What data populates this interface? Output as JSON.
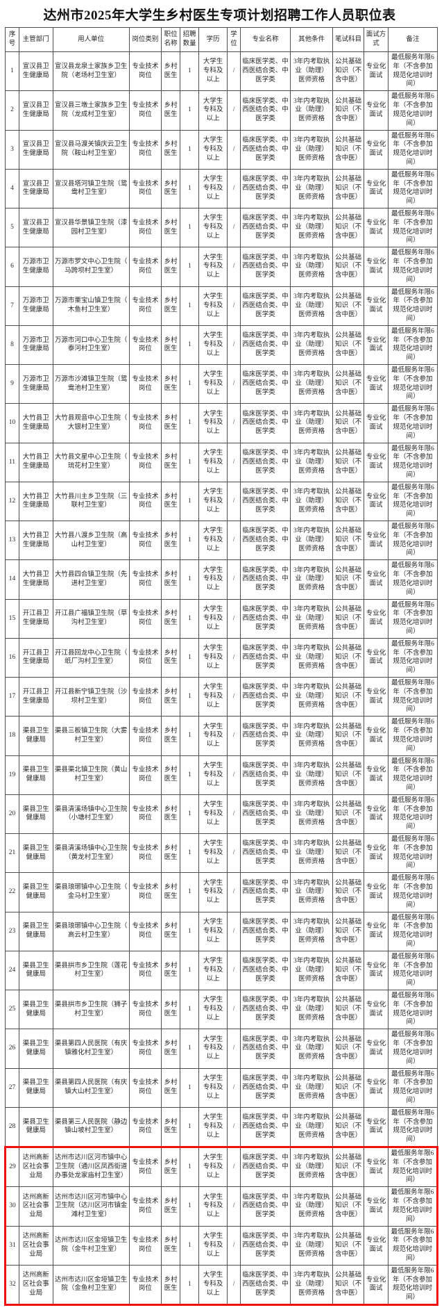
{
  "title": "达州市2025年大学生乡村医生专项计划招聘工作人员职位表",
  "table": {
    "headers": [
      "序号",
      "主管部门",
      "用人单位",
      "岗位类别",
      "职位名称",
      "招聘数量",
      "学历",
      "学位",
      "专业名称",
      "其他条件",
      "笔试科目",
      "面试方式",
      "备注"
    ],
    "shared_cells": {
      "category": "专业技术岗位",
      "position": "乡村医生",
      "count": "1",
      "education": "大学生专科及以上",
      "degree": "/",
      "major": "临床医学类、中西医结合类、中医学类",
      "other_conditions": "3年内考取执业（助理）医师资格",
      "written_subject": "公共基础知识（不含中医）",
      "interview_mode": "专业化面试",
      "remark": "最低服务年限6年（不含参加规范化培训时间）"
    },
    "rows": [
      {
        "no": "1",
        "department": "宣汉县卫生健康局",
        "employer": "宣汉县龙泉土家族乡卫生院（老场村卫生室）"
      },
      {
        "no": "2",
        "department": "宣汉县卫生健康局",
        "employer": "宣汉县三墩土家族乡卫生院（龙成村卫生室）"
      },
      {
        "no": "3",
        "department": "宣汉县卫生健康局",
        "employer": "宣汉县马渡关镇庆云卫生院（鞍山村卫生室）"
      },
      {
        "no": "4",
        "department": "宣汉县卫生健康局",
        "employer": "宣汉县塔河镇卫生院（鸳鸯村卫生室）"
      },
      {
        "no": "5",
        "department": "宣汉县卫生健康局",
        "employer": "宣汉县华景镇卫生院（漆园村卫生室）"
      },
      {
        "no": "6",
        "department": "万源市卫生健康局",
        "employer": "万源市罗文中心卫生院（马跨坝村卫生室）"
      },
      {
        "no": "7",
        "department": "万源市卫生健康局",
        "employer": "万源市栗宝山镇卫生院（木鱼村卫生室）"
      },
      {
        "no": "8",
        "department": "万源市卫生健康局",
        "employer": "万源市河口中心卫生院（泰河村卫生室）"
      },
      {
        "no": "9",
        "department": "万源市卫生健康局",
        "employer": "万源市沙滩镇卫生院（鸳鸯池村卫生室）"
      },
      {
        "no": "10",
        "department": "大竹县卫生健康局",
        "employer": "大竹县观音中心卫生院（大银村卫生室）"
      },
      {
        "no": "11",
        "department": "大竹县卫生健康局",
        "employer": "大竹县文星中心卫生院（琉花村卫生室）"
      },
      {
        "no": "12",
        "department": "大竹县卫生健康局",
        "employer": "大竹县川主乡卫生院（三联村卫生室）"
      },
      {
        "no": "13",
        "department": "大竹县卫生健康局",
        "employer": "大竹县八渡乡卫生院（高山村卫生室）"
      },
      {
        "no": "14",
        "department": "大竹县卫生健康局",
        "employer": "大竹县四合镇卫生院（先进村卫生室）"
      },
      {
        "no": "15",
        "department": "开江县卫生健康局",
        "employer": "开江县广福镇卫生院（草沟村卫生室）"
      },
      {
        "no": "16",
        "department": "开江县卫生健康局",
        "employer": "开江县回龙中心卫生院（纸厂沟村卫生室）"
      },
      {
        "no": "17",
        "department": "开江县卫生健康局",
        "employer": "开江县新宁镇卫生院（沙坝村卫生室）"
      },
      {
        "no": "18",
        "department": "渠县卫生健康局",
        "employer": "渠县三板镇卫生院（大雾村卫生室）"
      },
      {
        "no": "19",
        "department": "渠县卫生健康局",
        "employer": "渠县渠北镇卫生院（黄山村卫生室）"
      },
      {
        "no": "20",
        "department": "渠县卫生健康局",
        "employer": "渠县清溪场镇中心卫生院（小塘村卫生室）"
      },
      {
        "no": "21",
        "department": "渠县卫生健康局",
        "employer": "渠县清溪场镇中心卫生院（黄龙村卫生室）"
      },
      {
        "no": "22",
        "department": "渠县卫生健康局",
        "employer": "渠县琅琊镇中心卫生院（金马村卫生室）"
      },
      {
        "no": "23",
        "department": "渠县卫生健康局",
        "employer": "渠县琅琊镇中心卫生院（高云村卫生室）"
      },
      {
        "no": "24",
        "department": "渠县卫生健康局",
        "employer": "渠县拱市乡卫生院（莲花村卫生室）"
      },
      {
        "no": "25",
        "department": "渠县卫生健康局",
        "employer": "渠县拱市乡卫生院（狮子村卫生室）"
      },
      {
        "no": "26",
        "department": "渠县卫生健康局",
        "employer": "渠县第四人民医院（有庆镇雅化村卫生室）"
      },
      {
        "no": "27",
        "department": "渠县卫生健康局",
        "employer": "渠县第四人民医院（有庆镇大山村卫生室）"
      },
      {
        "no": "28",
        "department": "渠县卫生健康局",
        "employer": "渠县第三人民医院（静边镇山坡村卫生室）"
      },
      {
        "no": "29",
        "department": "达州高新区社会事业局",
        "employer": "达州市达川区河市镇中心卫生院（通川区凤西街道办事处龙家庙村卫生室）"
      },
      {
        "no": "30",
        "department": "达州高新区社会事业局",
        "employer": "达州市达川区河市镇中心卫生院（达川区河市镇金滩村卫生室）"
      },
      {
        "no": "31",
        "department": "达州高新区社会事业局",
        "employer": "达州市达川区金垭镇卫生院（金牛村卫生室）"
      },
      {
        "no": "32",
        "department": "达州高新区社会事业局",
        "employer": "达州市达川区金垭镇卫生院（金鱼村卫生室）"
      }
    ],
    "highlight": {
      "row_numbers": [
        29,
        30,
        31,
        32
      ],
      "color": "#f10e0e"
    }
  }
}
